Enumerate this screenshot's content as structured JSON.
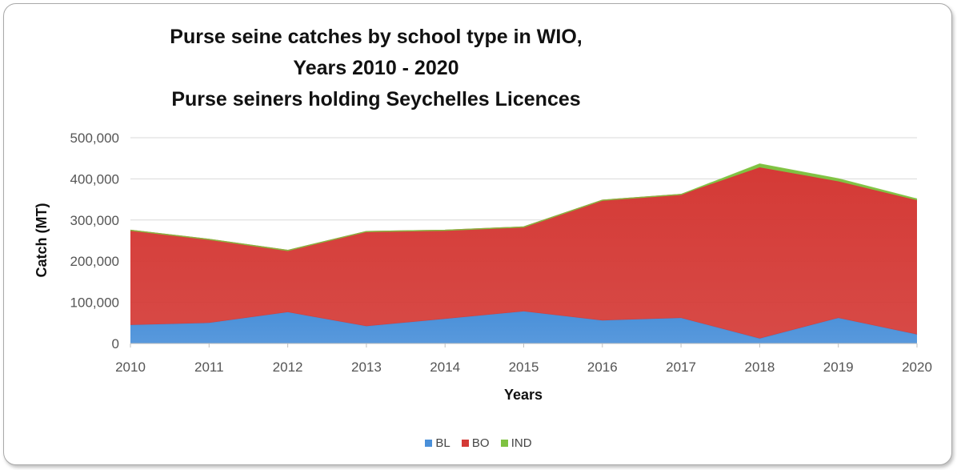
{
  "colors": {
    "BL": "#4a90d9",
    "BO": "#d43a36",
    "IND": "#7fc241"
  },
  "chart_data": {
    "type": "area",
    "stacked": true,
    "title_lines": [
      "Purse seine catches by school type in WIO,",
      "Years 2010 - 2020",
      "Purse seiners holding  Seychelles Licences"
    ],
    "xlabel": "Years",
    "ylabel": "Catch (MT)",
    "ylim": [
      0,
      500000
    ],
    "yticks": [
      "0",
      "100,000",
      "200,000",
      "300,000",
      "400,000",
      "500,000"
    ],
    "ytick_values": [
      0,
      100000,
      200000,
      300000,
      400000,
      500000
    ],
    "categories": [
      "2010",
      "2011",
      "2012",
      "2013",
      "2014",
      "2015",
      "2016",
      "2017",
      "2018",
      "2019",
      "2020"
    ],
    "series": [
      {
        "name": "BL",
        "values": [
          45000,
          50000,
          76000,
          42000,
          60000,
          78000,
          56000,
          62000,
          12000,
          62000,
          22000
        ]
      },
      {
        "name": "BO",
        "values": [
          230000,
          203000,
          150000,
          230000,
          215000,
          205000,
          292000,
          300000,
          416000,
          332000,
          326000
        ]
      },
      {
        "name": "IND",
        "values": [
          0,
          0,
          0,
          0,
          0,
          0,
          0,
          0,
          8000,
          6000,
          3000
        ]
      }
    ],
    "grid": true,
    "legend_position": "bottom"
  }
}
